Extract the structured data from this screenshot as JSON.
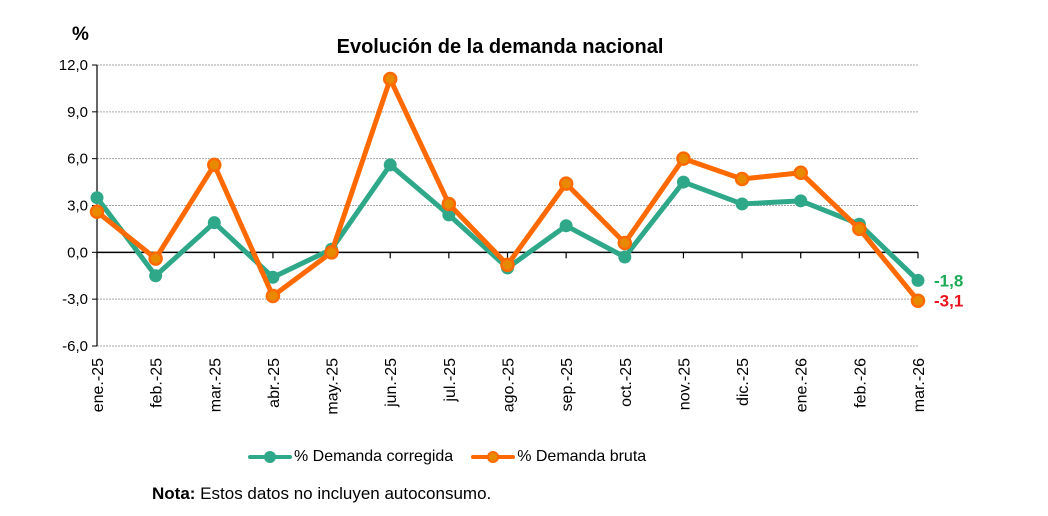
{
  "chart_data": {
    "type": "line",
    "title": "Evolución de la demanda nacional",
    "ylabel": "%",
    "xlabel": "",
    "ylim": [
      -6.0,
      12.0
    ],
    "yticks": [
      "12,0",
      "9,0",
      "6,0",
      "3,0",
      "0,0",
      "-3,0",
      "-6,0"
    ],
    "ytick_values": [
      12,
      9,
      6,
      3,
      0,
      -3,
      -6
    ],
    "grid": true,
    "legend_position": "bottom",
    "categories": [
      "ene.-25",
      "feb.-25",
      "mar.-25",
      "abr.-25",
      "may.-25",
      "jun.-25",
      "jul.-25",
      "ago.-25",
      "sep.-25",
      "oct.-25",
      "nov.-25",
      "dic.-25",
      "ene.-26",
      "feb.-26",
      "mar.-26"
    ],
    "series": [
      {
        "name": "% Demanda corregida",
        "color": "#2ea888",
        "values": [
          3.5,
          -1.5,
          1.9,
          -1.6,
          0.2,
          5.6,
          2.4,
          -1.0,
          1.7,
          -0.3,
          4.5,
          3.1,
          3.3,
          1.8,
          -1.8
        ],
        "end_label": "-1,8",
        "end_label_color": "#1aaa55"
      },
      {
        "name": "% Demanda bruta",
        "color": "#ff6a00",
        "marker_fill": "#e88a00",
        "values": [
          2.6,
          -0.4,
          5.6,
          -2.8,
          0.0,
          11.1,
          3.1,
          -0.8,
          4.4,
          0.6,
          6.0,
          4.7,
          5.1,
          1.5,
          -3.1
        ],
        "end_label": "-3,1",
        "end_label_color": "#e8141e"
      }
    ]
  },
  "note": {
    "label": "Nota:",
    "text": " Estos datos no incluyen autoconsumo."
  }
}
